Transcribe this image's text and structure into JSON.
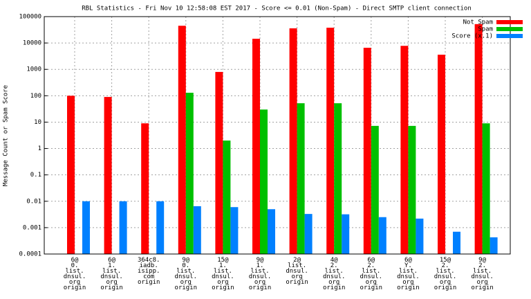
{
  "chart_data": {
    "type": "bar",
    "title": "RBL Statistics - Fri Nov 10 12:58:08 EST 2017 - Score <= 0.01 (Non-Spam) - Direct SMTP client connection",
    "y_label": "Message Count or Spam Score",
    "log_scale_y": true,
    "grid": true,
    "legend": "top-right",
    "categories": [
      [
        "6@",
        "0.",
        "list.",
        "dnsul.",
        "org",
        "origin"
      ],
      [
        "6@",
        "1.",
        "list.",
        "dnsul.",
        "org",
        "origin"
      ],
      [
        "364c8.",
        "iadb.",
        "isipp.",
        "com",
        "origin"
      ],
      [
        "9@",
        "0.",
        "list.",
        "dnsul.",
        "org",
        "origin"
      ],
      [
        "15@",
        "1.",
        "list.",
        "dnsul.",
        "org",
        "origin"
      ],
      [
        "9@",
        "1.",
        "list.",
        "dnsul.",
        "org",
        "origin"
      ],
      [
        "2@",
        "list.",
        "dnsul.",
        "org",
        "origin"
      ],
      [
        "4@",
        "2.",
        "list.",
        "dnsul.",
        "org",
        "origin"
      ],
      [
        "6@",
        "2.",
        "list.",
        "dnsul.",
        "org",
        "origin"
      ],
      [
        "6@",
        "Y.",
        "list.",
        "dnsul.",
        "org",
        "origin"
      ],
      [
        "15@",
        "2.",
        "list.",
        "dnsul.",
        "org",
        "origin"
      ],
      [
        "9@",
        "2.",
        "list.",
        "dnsul.",
        "org",
        "origin"
      ]
    ],
    "series": [
      {
        "name": "Not Spam",
        "color": "#ff0000",
        "values": [
          100,
          90,
          9,
          45000,
          800,
          14500,
          36000,
          38000,
          6600,
          7800,
          3600,
          52000
        ]
      },
      {
        "name": "Spam",
        "color": "#00c000",
        "values": [
          null,
          null,
          null,
          130,
          2,
          30,
          52,
          52,
          7.2,
          7.2,
          null,
          9
        ]
      },
      {
        "name": "Score (x.1)",
        "color": "#0080ff",
        "values": [
          0.01,
          0.01,
          0.01,
          0.0065,
          0.006,
          0.005,
          0.0033,
          0.0032,
          0.0025,
          0.0022,
          0.0007,
          0.00043
        ]
      }
    ],
    "ylim": [
      0.0001,
      100000
    ],
    "yticks": [
      0.0001,
      0.001,
      0.01,
      0.1,
      1,
      10,
      100,
      1000,
      10000,
      100000
    ]
  }
}
